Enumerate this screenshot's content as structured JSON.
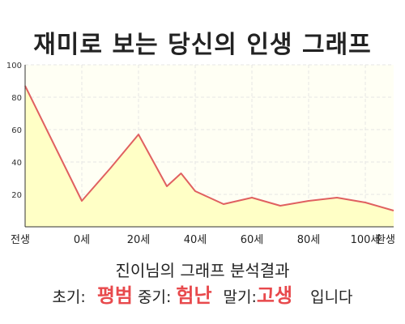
{
  "chart_data": {
    "type": "area",
    "title": "재미로 보는 당신의 인생 그래프",
    "x_tick_labels": [
      "전생",
      "0세",
      "20세",
      "40세",
      "60세",
      "80세",
      "100세",
      "환생"
    ],
    "x": [
      -20,
      0,
      10,
      20,
      30,
      35,
      40,
      50,
      60,
      70,
      80,
      90,
      100,
      110
    ],
    "y": [
      87,
      16,
      36,
      57,
      25,
      33,
      22,
      14,
      18,
      13,
      16,
      18,
      15,
      10
    ],
    "ylim": [
      0,
      100
    ],
    "y_ticks": [
      20,
      40,
      60,
      80,
      100
    ],
    "grid": true,
    "line_color": "#e06060",
    "fill_color": "#ffffc6"
  },
  "summary": {
    "title": "진이님의 그래프 분석결과",
    "early_label": "초기:",
    "early_value": "평범",
    "middle_label": "중기:",
    "middle_value": "험난",
    "late_label": "말기:",
    "late_value": "고생",
    "ending": "입니다",
    "highlight_color": "#e8494c"
  }
}
